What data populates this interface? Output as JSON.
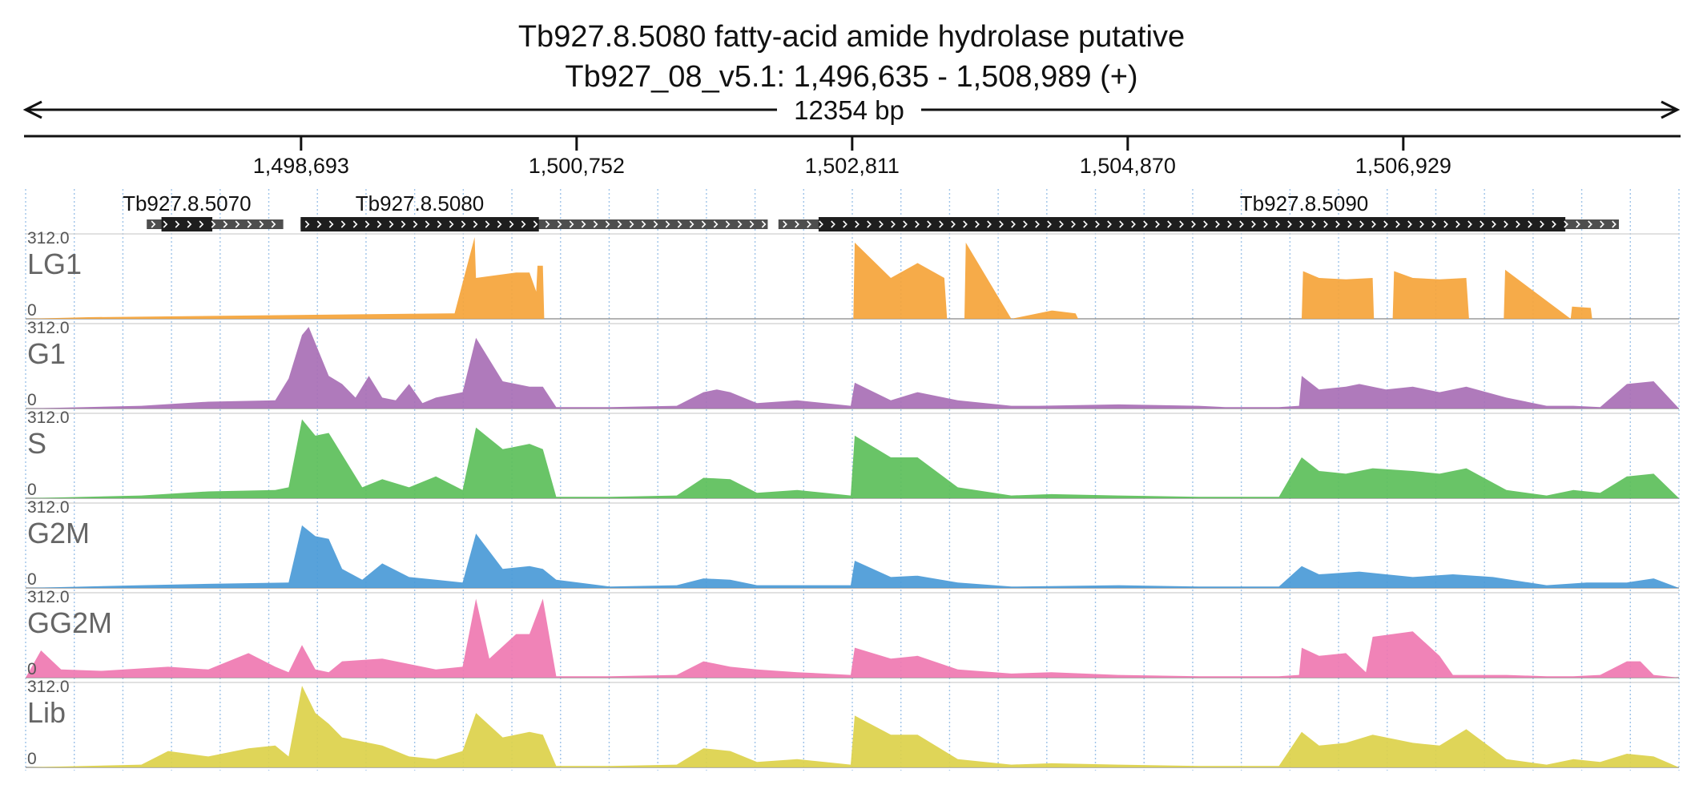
{
  "header": {
    "title_line1": "Tb927.8.5080  fatty-acid amide hydrolase  putative",
    "title_line2": "Tb927_08_v5.1: 1,496,635 - 1,508,989 (+)",
    "span_label": "12354 bp"
  },
  "region": {
    "start": 1496635,
    "end": 1508989,
    "strand": "+"
  },
  "axis": {
    "ticks": [
      {
        "pos": 1498693,
        "label": "1,498,693"
      },
      {
        "pos": 1500752,
        "label": "1,500,752"
      },
      {
        "pos": 1502811,
        "label": "1,502,811"
      },
      {
        "pos": 1504870,
        "label": "1,504,870"
      },
      {
        "pos": 1506929,
        "label": "1,506,929"
      }
    ]
  },
  "genes": [
    {
      "name": "Tb927.8.5070",
      "utr": [
        1497540,
        1498560
      ],
      "cds": [
        1497650,
        1498030
      ]
    },
    {
      "name": "Tb927.8.5080",
      "utr": [
        1498690,
        1502180
      ],
      "cds": [
        1498690,
        1500470
      ]
    },
    {
      "name": "Tb927.8.5090",
      "utr": [
        1502260,
        1508540
      ],
      "cds": [
        1502560,
        1508140
      ]
    }
  ],
  "colors": {
    "LG1": "#f5a43a",
    "G1": "#a86fb5",
    "S": "#5cbf5a",
    "G2M": "#4a9ad7",
    "GG2M": "#ef78b1",
    "Lib": "#dcd14a",
    "gene_block": "#1e1e1e",
    "utr_block": "#4e4e4e",
    "grid": "#9ec3e8"
  },
  "chart_data": {
    "type": "area",
    "title": "Tb927.8.5080  fatty-acid amide hydrolase  putative",
    "subtitle": "Tb927_08_v5.1: 1,496,635 - 1,508,989 (+)",
    "xlabel": "",
    "ylabel": "",
    "xlim": [
      1496635,
      1508989
    ],
    "ylim": [
      0,
      312.0
    ],
    "y_max_label": "312.0",
    "y_min_label": "0",
    "grid": true,
    "series": [
      {
        "name": "LG1",
        "x": [
          1496635,
          1497100,
          1499800,
          1499840,
          1499990,
          1500000,
          1500300,
          1500400,
          1500450,
          1500460,
          1500500,
          1500510,
          1502820,
          1502830,
          1503100,
          1503300,
          1503500,
          1503520,
          1503650,
          1503660,
          1504000,
          1504300,
          1504310,
          1504480,
          1504500,
          1506170,
          1506180,
          1506300,
          1506500,
          1506700,
          1506710,
          1506850,
          1506860,
          1507000,
          1507200,
          1507400,
          1507420,
          1507680,
          1507690,
          1508180,
          1508190,
          1508330,
          1508340,
          1508989
        ],
        "y": [
          0,
          6,
          20,
          20,
          300,
          150,
          170,
          170,
          100,
          195,
          195,
          0,
          0,
          280,
          150,
          205,
          150,
          0,
          0,
          280,
          0,
          30,
          30,
          20,
          0,
          0,
          175,
          150,
          145,
          150,
          0,
          0,
          175,
          150,
          145,
          150,
          0,
          0,
          180,
          0,
          45,
          40,
          0,
          0
        ]
      },
      {
        "name": "G1",
        "x": [
          1496635,
          1497500,
          1498000,
          1498500,
          1498600,
          1498700,
          1498750,
          1498900,
          1499000,
          1499100,
          1499200,
          1499300,
          1499400,
          1499500,
          1499600,
          1499700,
          1499900,
          1500000,
          1500200,
          1500400,
          1500500,
          1500600,
          1501000,
          1501500,
          1501700,
          1501800,
          1501900,
          1502100,
          1502400,
          1502800,
          1502830,
          1503100,
          1503300,
          1503600,
          1504000,
          1504200,
          1504800,
          1505400,
          1505600,
          1506000,
          1506150,
          1506170,
          1506300,
          1506500,
          1506600,
          1506800,
          1507000,
          1507200,
          1507400,
          1507700,
          1508000,
          1508200,
          1508400,
          1508600,
          1508800,
          1508989
        ],
        "y": [
          0,
          10,
          25,
          30,
          110,
          270,
          300,
          120,
          90,
          40,
          120,
          40,
          30,
          90,
          20,
          40,
          60,
          260,
          100,
          80,
          80,
          5,
          5,
          10,
          60,
          70,
          60,
          20,
          30,
          10,
          95,
          30,
          60,
          30,
          10,
          10,
          15,
          10,
          5,
          5,
          10,
          120,
          70,
          80,
          90,
          70,
          80,
          60,
          80,
          40,
          10,
          10,
          5,
          90,
          100,
          0
        ]
      },
      {
        "name": "S",
        "x": [
          1496635,
          1497500,
          1498000,
          1498500,
          1498600,
          1498700,
          1498800,
          1498900,
          1499000,
          1499150,
          1499300,
          1499500,
          1499700,
          1499900,
          1500000,
          1500200,
          1500400,
          1500500,
          1500600,
          1501000,
          1501500,
          1501700,
          1501900,
          1502100,
          1502400,
          1502800,
          1502830,
          1503100,
          1503300,
          1503600,
          1504000,
          1504300,
          1504800,
          1505400,
          1506000,
          1506170,
          1506300,
          1506500,
          1506700,
          1507000,
          1507200,
          1507400,
          1507700,
          1508000,
          1508200,
          1508400,
          1508600,
          1508800,
          1508989
        ],
        "y": [
          0,
          10,
          25,
          30,
          40,
          290,
          230,
          240,
          160,
          40,
          70,
          40,
          80,
          30,
          260,
          180,
          200,
          180,
          5,
          5,
          10,
          75,
          70,
          20,
          30,
          10,
          230,
          150,
          150,
          40,
          10,
          15,
          10,
          5,
          5,
          150,
          100,
          90,
          110,
          100,
          90,
          110,
          30,
          10,
          30,
          20,
          80,
          90,
          0
        ]
      },
      {
        "name": "G2M",
        "x": [
          1496635,
          1497500,
          1498000,
          1498600,
          1498700,
          1498800,
          1498900,
          1499000,
          1499150,
          1499300,
          1499500,
          1499700,
          1499900,
          1500000,
          1500200,
          1500400,
          1500500,
          1500600,
          1501000,
          1501500,
          1501700,
          1501900,
          1502100,
          1502800,
          1502830,
          1503100,
          1503300,
          1503600,
          1504000,
          1504800,
          1505400,
          1506000,
          1506170,
          1506300,
          1506600,
          1507000,
          1507300,
          1507600,
          1508000,
          1508300,
          1508600,
          1508800,
          1508989
        ],
        "y": [
          0,
          10,
          15,
          20,
          230,
          190,
          180,
          70,
          30,
          90,
          40,
          30,
          20,
          200,
          70,
          80,
          70,
          30,
          5,
          10,
          35,
          30,
          10,
          10,
          100,
          40,
          45,
          20,
          5,
          10,
          5,
          5,
          80,
          50,
          60,
          40,
          50,
          40,
          10,
          20,
          20,
          35,
          0
        ]
      },
      {
        "name": "GG2M",
        "x": [
          1496635,
          1496750,
          1496900,
          1497200,
          1497700,
          1498000,
          1498300,
          1498500,
          1498600,
          1498700,
          1498800,
          1498900,
          1499000,
          1499300,
          1499500,
          1499700,
          1499900,
          1500000,
          1500100,
          1500300,
          1500400,
          1500500,
          1500600,
          1501000,
          1501500,
          1501700,
          1501900,
          1502100,
          1502400,
          1502800,
          1502830,
          1503100,
          1503300,
          1503600,
          1504000,
          1504300,
          1504800,
          1505400,
          1506000,
          1506150,
          1506170,
          1506300,
          1506500,
          1506650,
          1506700,
          1506850,
          1507000,
          1507200,
          1507300,
          1507700,
          1508000,
          1508200,
          1508400,
          1508600,
          1508700,
          1508800,
          1508989
        ],
        "y": [
          0,
          100,
          30,
          25,
          40,
          30,
          90,
          40,
          20,
          120,
          30,
          20,
          60,
          70,
          50,
          30,
          40,
          290,
          70,
          160,
          160,
          290,
          5,
          5,
          10,
          60,
          40,
          30,
          20,
          10,
          110,
          70,
          80,
          30,
          15,
          20,
          10,
          5,
          5,
          10,
          110,
          80,
          90,
          20,
          150,
          160,
          170,
          80,
          10,
          10,
          5,
          5,
          10,
          60,
          60,
          10,
          0
        ]
      },
      {
        "name": "Lib",
        "x": [
          1496635,
          1497500,
          1497700,
          1498000,
          1498300,
          1498500,
          1498600,
          1498700,
          1498800,
          1498900,
          1499000,
          1499300,
          1499500,
          1499700,
          1499900,
          1500000,
          1500200,
          1500400,
          1500500,
          1500600,
          1501000,
          1501500,
          1501700,
          1501900,
          1502100,
          1502400,
          1502800,
          1502830,
          1503100,
          1503300,
          1503600,
          1504000,
          1504300,
          1504800,
          1505400,
          1506000,
          1506170,
          1506300,
          1506500,
          1506700,
          1507000,
          1507200,
          1507400,
          1507700,
          1508000,
          1508200,
          1508400,
          1508600,
          1508800,
          1508989
        ],
        "y": [
          0,
          10,
          60,
          40,
          70,
          80,
          40,
          300,
          200,
          160,
          110,
          80,
          40,
          30,
          60,
          200,
          110,
          130,
          120,
          5,
          5,
          10,
          70,
          60,
          20,
          30,
          10,
          190,
          120,
          120,
          30,
          10,
          15,
          10,
          5,
          5,
          130,
          80,
          90,
          120,
          90,
          80,
          140,
          30,
          10,
          30,
          20,
          50,
          40,
          0
        ]
      }
    ]
  }
}
